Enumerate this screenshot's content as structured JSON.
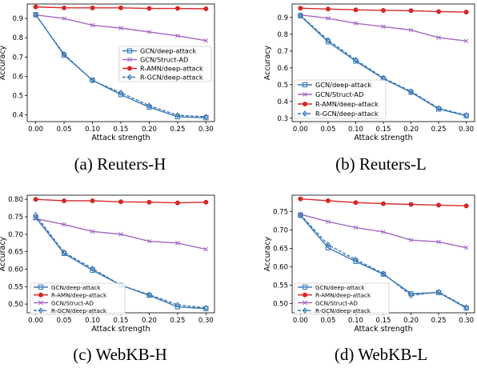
{
  "colors": {
    "gcn_deep": "#3b79b5",
    "gcn_struct": "#a468c4",
    "ramn": "#d62728",
    "rgcn": "#3b79b5"
  },
  "panels": [
    {
      "caption": "(a) Reuters-H",
      "xlabel": "Attack strength",
      "ylabel": "Accuracy"
    },
    {
      "caption": "(b) Reuters-L",
      "xlabel": "Attack strength",
      "ylabel": "Accuracy"
    },
    {
      "caption": "(c) WebKB-H",
      "xlabel": "Attack strength",
      "ylabel": "Accuracy"
    },
    {
      "caption": "(d) WebKB-L",
      "xlabel": "Attack strength",
      "ylabel": "Accuracy"
    }
  ],
  "chart_data": [
    {
      "type": "line",
      "title": "(a) Reuters-H",
      "xlabel": "Attack strength",
      "ylabel": "Accuracy",
      "x": [
        0.0,
        0.05,
        0.1,
        0.15,
        0.2,
        0.25,
        0.3
      ],
      "x_ticks": [
        "0.00",
        "0.05",
        "0.10",
        "0.15",
        "0.20",
        "0.25",
        "0.30"
      ],
      "y_ticks": [
        "0.4",
        "0.5",
        "0.6",
        "0.7",
        "0.8",
        "0.9"
      ],
      "ylim": [
        0.365,
        0.975
      ],
      "legend_position": "center-right",
      "legend_order": [
        "gcn_deep",
        "gcn_struct",
        "ramn",
        "rgcn"
      ],
      "series": [
        {
          "key": "gcn_deep",
          "name": "GCN/deep-attack",
          "marker": "square",
          "dash": false,
          "values": [
            0.92,
            0.71,
            0.58,
            0.505,
            0.44,
            0.39,
            0.385
          ]
        },
        {
          "key": "gcn_struct",
          "name": "GCN/Struct-AD",
          "marker": "x",
          "dash": false,
          "values": [
            0.918,
            0.9,
            0.865,
            0.85,
            0.83,
            0.81,
            0.785
          ]
        },
        {
          "key": "ramn",
          "name": "R-AMN/deep-attack",
          "marker": "circle",
          "dash": false,
          "values": [
            0.96,
            0.955,
            0.955,
            0.955,
            0.952,
            0.952,
            0.95
          ]
        },
        {
          "key": "rgcn",
          "name": "R-GCN/deep-attack",
          "marker": "diamond",
          "dash": true,
          "values": [
            0.918,
            0.715,
            0.578,
            0.515,
            0.448,
            0.398,
            0.39
          ]
        }
      ]
    },
    {
      "type": "line",
      "title": "(b) Reuters-L",
      "xlabel": "Attack strength",
      "ylabel": "Accuracy",
      "x": [
        0.0,
        0.05,
        0.1,
        0.15,
        0.2,
        0.25,
        0.3
      ],
      "x_ticks": [
        "0.00",
        "0.05",
        "0.10",
        "0.15",
        "0.20",
        "0.25",
        "0.30"
      ],
      "y_ticks": [
        "0.3",
        "0.4",
        "0.5",
        "0.6",
        "0.7",
        "0.8",
        "0.9"
      ],
      "ylim": [
        0.28,
        0.98
      ],
      "legend_position": "lower-left",
      "legend_order": [
        "gcn_deep",
        "gcn_struct",
        "ramn",
        "rgcn"
      ],
      "series": [
        {
          "key": "gcn_deep",
          "name": "GCN/deep-attack",
          "marker": "square",
          "dash": false,
          "values": [
            0.91,
            0.755,
            0.64,
            0.535,
            0.455,
            0.355,
            0.315
          ]
        },
        {
          "key": "gcn_struct",
          "name": "GCN/Struct-AD",
          "marker": "x",
          "dash": false,
          "values": [
            0.915,
            0.895,
            0.865,
            0.845,
            0.825,
            0.78,
            0.76
          ]
        },
        {
          "key": "ramn",
          "name": "R-AMN/deep-attack",
          "marker": "circle",
          "dash": false,
          "values": [
            0.955,
            0.95,
            0.945,
            0.942,
            0.94,
            0.935,
            0.932
          ]
        },
        {
          "key": "rgcn",
          "name": "R-GCN/deep-attack",
          "marker": "diamond",
          "dash": true,
          "values": [
            0.912,
            0.765,
            0.648,
            0.54,
            0.46,
            0.36,
            0.318
          ]
        }
      ]
    },
    {
      "type": "line",
      "title": "(c) WebKB-H",
      "xlabel": "Attack strength",
      "ylabel": "Accuracy",
      "x": [
        0.0,
        0.05,
        0.1,
        0.15,
        0.2,
        0.25,
        0.3
      ],
      "x_ticks": [
        "0.00",
        "0.05",
        "0.10",
        "0.15",
        "0.20",
        "0.25",
        "0.30"
      ],
      "y_ticks": [
        "0.50",
        "0.55",
        "0.60",
        "0.65",
        "0.70",
        "0.75",
        "0.80"
      ],
      "ylim": [
        0.475,
        0.812
      ],
      "legend_position": "lower-left",
      "legend_order": [
        "gcn_deep",
        "ramn",
        "gcn_struct",
        "rgcn"
      ],
      "series": [
        {
          "key": "gcn_deep",
          "name": "GCN/deep-attack",
          "marker": "square",
          "dash": false,
          "values": [
            0.748,
            0.645,
            0.597,
            0.554,
            0.525,
            0.492,
            0.487
          ]
        },
        {
          "key": "gcn_struct",
          "name": "GCN/Struct-AD",
          "marker": "x",
          "dash": false,
          "values": [
            0.745,
            0.728,
            0.708,
            0.7,
            0.68,
            0.675,
            0.657
          ]
        },
        {
          "key": "ramn",
          "name": "R-AMN/deep-attack",
          "marker": "circle",
          "dash": false,
          "values": [
            0.8,
            0.796,
            0.796,
            0.793,
            0.792,
            0.79,
            0.792
          ]
        },
        {
          "key": "rgcn",
          "name": "R-GCN/deep-attack",
          "marker": "diamond",
          "dash": true,
          "values": [
            0.755,
            0.648,
            0.602,
            0.554,
            0.527,
            0.498,
            0.489
          ]
        }
      ]
    },
    {
      "type": "line",
      "title": "(d) WebKB-L",
      "xlabel": "Attack strength",
      "ylabel": "Accuracy",
      "x": [
        0.0,
        0.05,
        0.1,
        0.15,
        0.2,
        0.25,
        0.3
      ],
      "x_ticks": [
        "0.00",
        "0.05",
        "0.10",
        "0.15",
        "0.20",
        "0.25",
        "0.30"
      ],
      "y_ticks": [
        "0.50",
        "0.55",
        "0.60",
        "0.65",
        "0.70",
        "0.75"
      ],
      "ylim": [
        0.475,
        0.795
      ],
      "legend_position": "lower-left",
      "legend_order": [
        "gcn_deep",
        "ramn",
        "gcn_struct",
        "rgcn"
      ],
      "series": [
        {
          "key": "gcn_deep",
          "name": "GCN/deep-attack",
          "marker": "square",
          "dash": false,
          "values": [
            0.74,
            0.652,
            0.615,
            0.58,
            0.527,
            0.53,
            0.488
          ]
        },
        {
          "key": "gcn_struct",
          "name": "GCN/Struct-AD",
          "marker": "x",
          "dash": false,
          "values": [
            0.743,
            0.723,
            0.707,
            0.695,
            0.673,
            0.668,
            0.652
          ]
        },
        {
          "key": "ramn",
          "name": "R-AMN/deep-attack",
          "marker": "circle",
          "dash": false,
          "values": [
            0.785,
            0.78,
            0.775,
            0.772,
            0.77,
            0.768,
            0.766
          ]
        },
        {
          "key": "rgcn",
          "name": "R-GCN/deep-attack",
          "marker": "diamond",
          "dash": true,
          "values": [
            0.742,
            0.66,
            0.62,
            0.582,
            0.522,
            0.532,
            0.49
          ]
        }
      ]
    }
  ]
}
